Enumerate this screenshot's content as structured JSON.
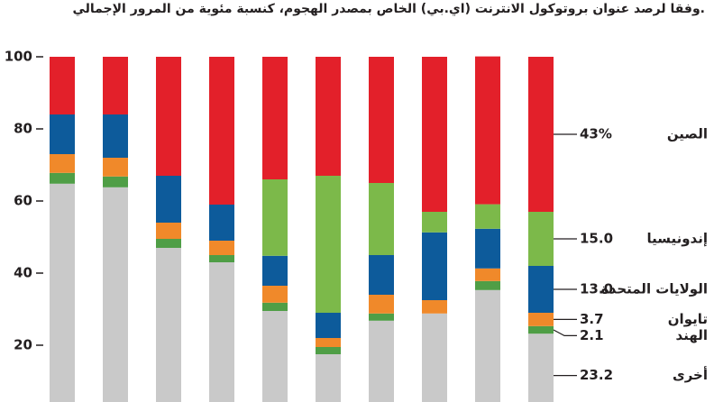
{
  "chart_data": {
    "type": "stacked-bar",
    "title": "وفقا لرصد عنوان بروتوكول الانترنت (اي.بي) الخاص بمصدر الهجوم، كنسبة مئوية من المرور الإجمالي.",
    "categories": [
      null,
      null,
      null,
      null,
      null,
      null,
      null,
      null,
      null,
      null
    ],
    "ylim": [
      4.25,
      100
    ],
    "yticks": [
      20,
      40,
      60,
      80,
      100
    ],
    "grid": false,
    "series": [
      {
        "name": "أخرى",
        "color": "#c9c9c9",
        "values": [
          64.8,
          63.8,
          47,
          43,
          29.5,
          17.5,
          26.8,
          28.8,
          35.3,
          23.2
        ],
        "value_labels": [
          null,
          null,
          null,
          null,
          null,
          null,
          null,
          null,
          null,
          "23.2"
        ]
      },
      {
        "name": "الهند",
        "color": "#4f9e46",
        "values": [
          3,
          3,
          2.5,
          2,
          2.3,
          2,
          2,
          0,
          2.5,
          2.1
        ],
        "value_labels": [
          null,
          null,
          null,
          null,
          null,
          null,
          null,
          null,
          null,
          "2.1"
        ]
      },
      {
        "name": "تايوان",
        "color": "#f0892a",
        "values": [
          5.2,
          5.2,
          4.5,
          4,
          4.7,
          2.5,
          5.2,
          3.7,
          3.5,
          3.7
        ],
        "value_labels": [
          null,
          null,
          null,
          null,
          null,
          null,
          null,
          null,
          null,
          "3.7"
        ]
      },
      {
        "name": "الولايات المتحدة",
        "color": "#0d5b9b",
        "values": [
          11,
          12,
          13,
          10,
          8.3,
          7,
          11,
          18.8,
          11,
          13.0
        ],
        "value_labels": [
          null,
          null,
          null,
          null,
          null,
          null,
          null,
          null,
          null,
          "13.0"
        ]
      },
      {
        "name": "إندونيسيا",
        "color": "#7cb94a",
        "values": [
          0,
          0,
          0,
          0,
          21.2,
          38,
          20,
          5.7,
          6.8,
          15.0
        ],
        "value_labels": [
          null,
          null,
          null,
          null,
          null,
          null,
          null,
          null,
          null,
          "15.0"
        ]
      },
      {
        "name": "الصين",
        "color": "#e3202a",
        "values": [
          16,
          16,
          33,
          41,
          34,
          33,
          35,
          43,
          41,
          43
        ],
        "value_labels": [
          null,
          null,
          null,
          null,
          null,
          null,
          null,
          null,
          null,
          "43%"
        ]
      }
    ]
  }
}
